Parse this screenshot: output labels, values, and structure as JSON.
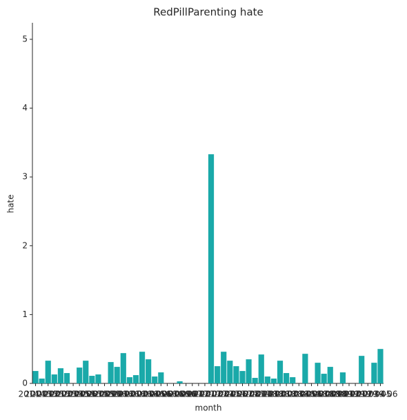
{
  "chart_data": {
    "type": "bar",
    "title": "RedPillParenting hate",
    "x_label": "month",
    "y_label": "hate",
    "categories": [
      "2014-11",
      "2014-12",
      "2015-01",
      "2015-02",
      "2015-03",
      "2015-04",
      "2015-05",
      "2015-06",
      "2015-07",
      "2015-08",
      "2015-09",
      "2015-10",
      "2015-11",
      "2015-12",
      "2016-01",
      "2016-02",
      "2016-03",
      "2016-04",
      "2016-05",
      "2016-06",
      "2016-07",
      "2016-08",
      "2016-09",
      "2016-10",
      "2016-11",
      "2016-12",
      "2017-01",
      "2017-02",
      "2017-03",
      "2017-04",
      "2017-05",
      "2017-06",
      "2017-07",
      "2017-08",
      "2017-09",
      "2017-10",
      "2017-11",
      "2017-12",
      "2018-01",
      "2018-02",
      "2018-03",
      "2018-04",
      "2018-05",
      "2018-06",
      "2018-07",
      "2018-08",
      "2018-09",
      "2018-10",
      "2018-11",
      "2018-12",
      "2019-01",
      "2019-02",
      "2019-03",
      "2019-04",
      "2019-05",
      "2019-06"
    ],
    "values": [
      0.18,
      0.07,
      0.33,
      0.13,
      0.22,
      0.15,
      0,
      0.23,
      0.33,
      0.11,
      0.13,
      0,
      0.31,
      0.24,
      0.44,
      0.09,
      0.12,
      0.46,
      0.35,
      0.1,
      0.16,
      0,
      0,
      0.03,
      0,
      0,
      0,
      0,
      3.33,
      0.25,
      0.46,
      0.33,
      0.25,
      0.18,
      0.35,
      0.08,
      0.42,
      0.1,
      0.07,
      0.33,
      0.15,
      0.09,
      0,
      0.43,
      0,
      0.3,
      0.14,
      0.24,
      0,
      0.16,
      0,
      0,
      0.4,
      0,
      0.3,
      0.5
    ],
    "color": "#1aa9a9",
    "ylim": [
      0,
      5.24
    ],
    "yticks": [
      0,
      1,
      2,
      3,
      4,
      5
    ],
    "grid": false
  }
}
